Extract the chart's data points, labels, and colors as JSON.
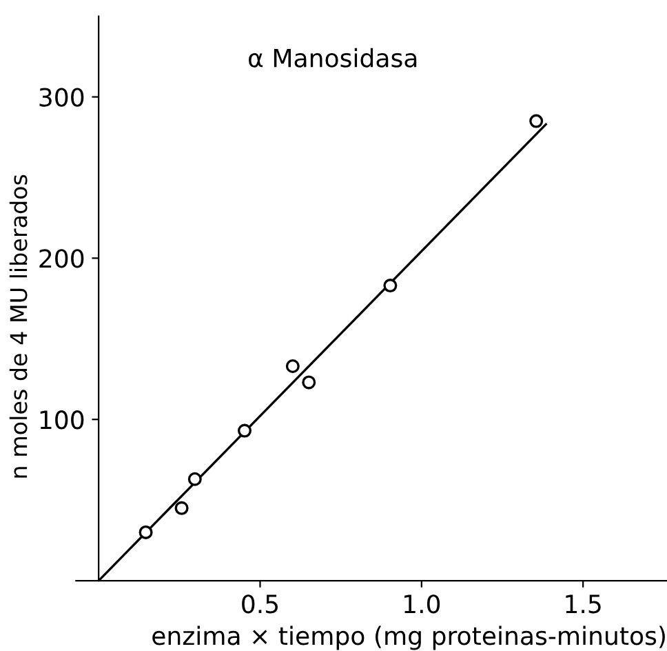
{
  "chart_data": {
    "type": "scatter",
    "annotations": [
      "α Manosidasa"
    ],
    "xlabel": "enzima × tiempo (mg proteinas-minutos)",
    "ylabel": "n moles de 4 MU liberados",
    "series": [
      {
        "color": "#000000",
        "marker": "circle",
        "x": [
          0.146,
          0.257,
          0.298,
          0.452,
          0.601,
          0.651,
          0.903,
          1.355
        ],
        "values": [
          30,
          45,
          63,
          93,
          133,
          123,
          183,
          285
        ]
      },
      {
        "type": "line",
        "color": "#000000",
        "marker": "none",
        "line_style": "solid",
        "x": [
          0,
          1.385
        ],
        "values": [
          0,
          283
        ]
      }
    ],
    "xlim": [
      -0.07,
      1.76
    ],
    "ylim": [
      0,
      350
    ],
    "xticks": [
      {
        "value": 0.5,
        "label": "0.5"
      },
      {
        "value": 1.0,
        "label": "1.0"
      },
      {
        "value": 1.5,
        "label": "1.5"
      }
    ],
    "yticks": [
      100,
      200,
      300
    ],
    "grid": false,
    "legend": false
  }
}
